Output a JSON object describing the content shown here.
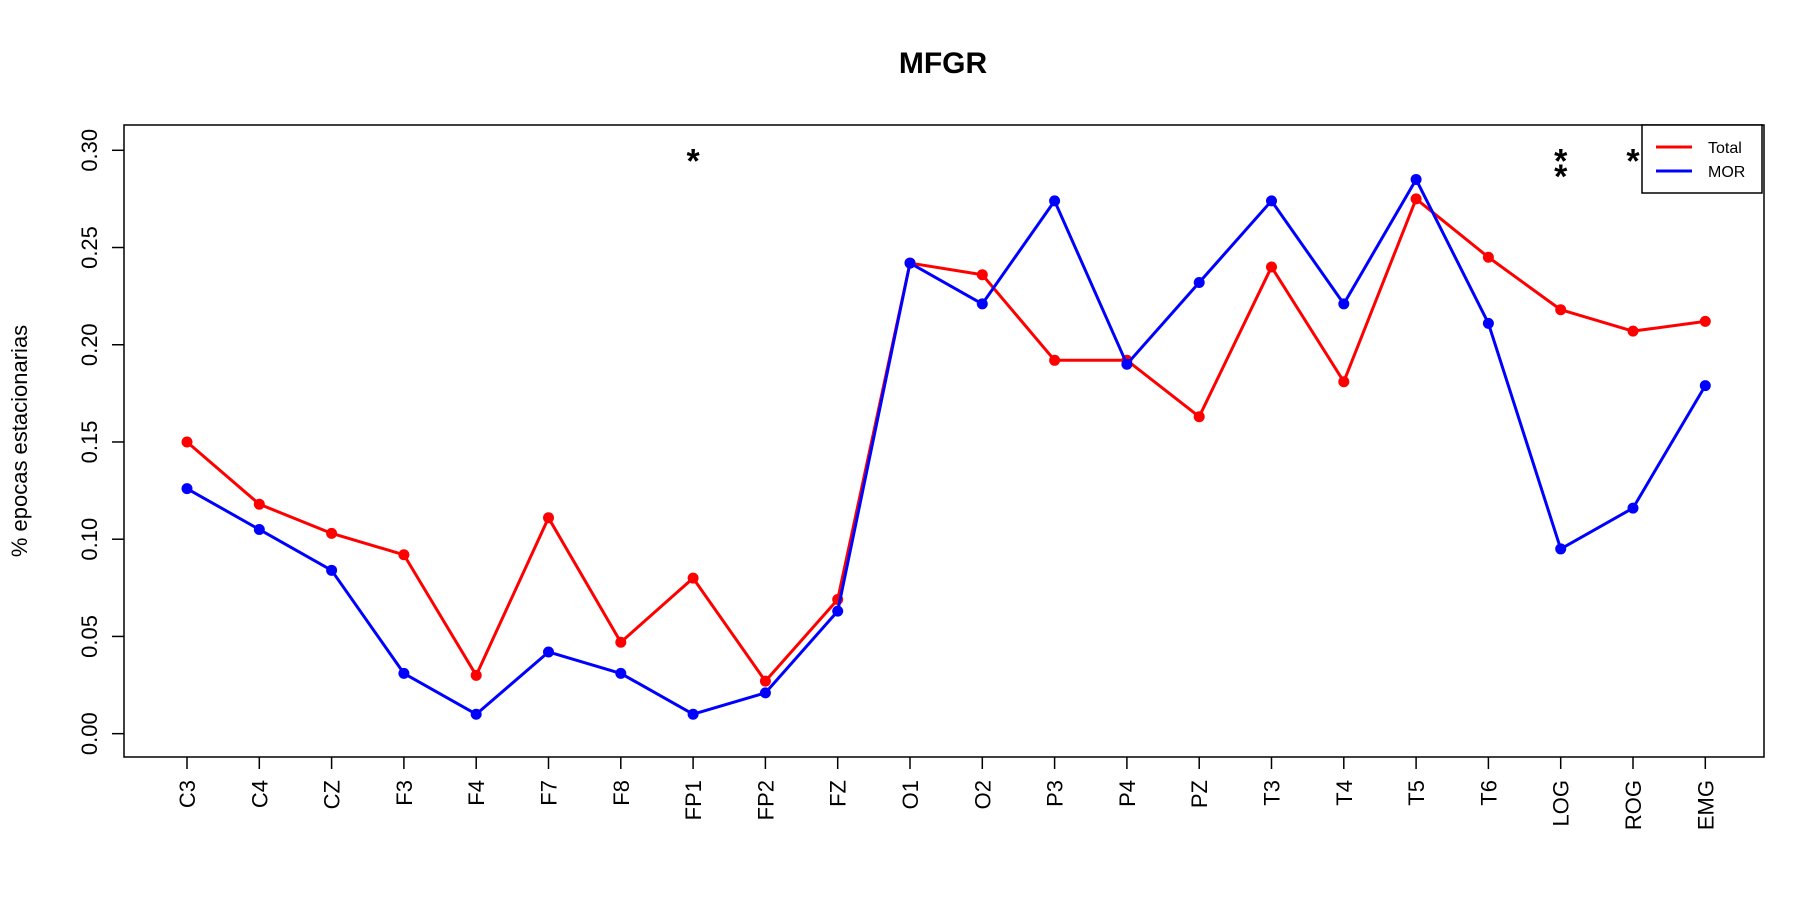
{
  "chart_data": {
    "type": "line",
    "title": "MFGR",
    "xlabel": "",
    "ylabel": "% epocas estacionarias",
    "ylim": [
      -0.012,
      0.313
    ],
    "yticks": [
      "0.00",
      "0.05",
      "0.10",
      "0.15",
      "0.20",
      "0.25",
      "0.30"
    ],
    "categories": [
      "C3",
      "C4",
      "CZ",
      "F3",
      "F4",
      "F7",
      "F8",
      "FP1",
      "FP2",
      "FZ",
      "O1",
      "O2",
      "P3",
      "P4",
      "PZ",
      "T3",
      "T4",
      "T5",
      "T6",
      "LOG",
      "ROG",
      "EMG"
    ],
    "series": [
      {
        "name": "Total",
        "color": "#ff0000",
        "values": [
          0.15,
          0.118,
          0.103,
          0.092,
          0.03,
          0.111,
          0.047,
          0.08,
          0.027,
          0.069,
          0.242,
          0.236,
          0.192,
          0.192,
          0.163,
          0.24,
          0.181,
          0.275,
          0.245,
          0.218,
          0.207,
          0.212
        ]
      },
      {
        "name": "MOR",
        "color": "#0000ff",
        "values": [
          0.126,
          0.105,
          0.084,
          0.031,
          0.01,
          0.042,
          0.031,
          0.01,
          0.021,
          0.063,
          0.242,
          0.221,
          0.274,
          0.19,
          0.232,
          0.274,
          0.221,
          0.285,
          0.211,
          0.095,
          0.116,
          0.179
        ]
      }
    ],
    "grid": false,
    "legend_position": "top-right",
    "annotations": [
      {
        "category": "FP1",
        "text": "*",
        "y": 0.3
      },
      {
        "category": "LOG",
        "text": "*",
        "y": 0.3
      },
      {
        "category": "LOG",
        "text": "*",
        "y": 0.292
      },
      {
        "category": "ROG",
        "text": "*",
        "y": 0.3
      }
    ]
  }
}
